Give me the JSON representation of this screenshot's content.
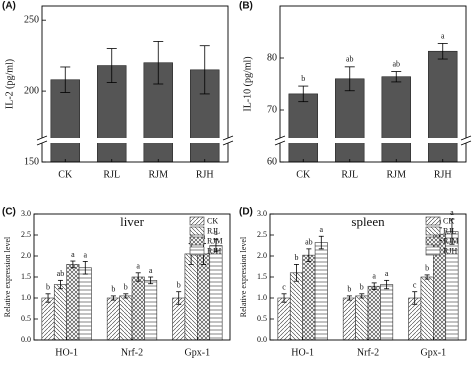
{
  "chart_data": [
    {
      "type": "bar",
      "panel_label": "(A)",
      "ylabel": "IL-2 (pg/ml)",
      "categories": [
        "CK",
        "RJL",
        "RJM",
        "RJH"
      ],
      "values": [
        208,
        218,
        220,
        215
      ],
      "errors": [
        9,
        12,
        15,
        17
      ],
      "color": "#555555",
      "ylim": [
        150,
        260
      ],
      "yticks": [
        150,
        200,
        250
      ],
      "axis_break": true
    },
    {
      "type": "bar",
      "panel_label": "(B)",
      "ylabel": "IL-10 (pg/ml)",
      "categories": [
        "CK",
        "RJL",
        "RJM",
        "RJH"
      ],
      "values": [
        73.1,
        76,
        76.4,
        81.3
      ],
      "errors": [
        1.5,
        2.3,
        1,
        1.5
      ],
      "letters": [
        "b",
        "ab",
        "ab",
        "a"
      ],
      "color": "#555555",
      "ylim": [
        60,
        90
      ],
      "yticks": [
        60,
        70,
        80
      ],
      "axis_break": true
    },
    {
      "type": "grouped_bar",
      "panel_label": "(C)",
      "title": "liver",
      "ylabel": "Relative expression level",
      "categories": [
        "HO-1",
        "Nrf-2",
        "Gpx-1"
      ],
      "series": [
        {
          "name": "CK",
          "pattern": "diagonal",
          "values": [
            1.0,
            1.0,
            1.0
          ],
          "errors": [
            0.1,
            0.05,
            0.15
          ],
          "letters": [
            "b",
            "b",
            "b"
          ]
        },
        {
          "name": "RJL",
          "pattern": "back-diagonal",
          "values": [
            1.32,
            1.05,
            2.05
          ],
          "errors": [
            0.1,
            0.05,
            0.25
          ],
          "letters": [
            "ab",
            "b",
            "a"
          ]
        },
        {
          "name": "RJM",
          "pattern": "cross",
          "values": [
            1.8,
            1.5,
            2.05
          ],
          "errors": [
            0.08,
            0.1,
            0.25
          ],
          "letters": [
            "a",
            "a",
            "a"
          ]
        },
        {
          "name": "RJH",
          "pattern": "grid",
          "values": [
            1.72,
            1.42,
            2.25
          ],
          "errors": [
            0.15,
            0.08,
            0.15
          ],
          "letters": [
            "a",
            "a",
            "a"
          ]
        }
      ],
      "ylim": [
        0,
        3.0
      ],
      "yticks": [
        {
          "value": 0,
          "label": "0.0"
        },
        0.5,
        {
          "value": 1,
          "label": "1.0"
        },
        1.5,
        {
          "value": 2,
          "label": "2.0"
        },
        2.5,
        {
          "value": 3,
          "label": "3.0"
        }
      ],
      "legend": "upper right"
    },
    {
      "type": "grouped_bar",
      "panel_label": "(D)",
      "title": "spleen",
      "ylabel": "Relative expression level",
      "categories": [
        "HO-1",
        "Nrf-2",
        "Gpx-1"
      ],
      "series": [
        {
          "name": "CK",
          "pattern": "diagonal",
          "values": [
            1.0,
            1.0,
            1.0
          ],
          "errors": [
            0.1,
            0.05,
            0.15
          ],
          "letters": [
            "c",
            "b",
            "c"
          ]
        },
        {
          "name": "RJL",
          "pattern": "back-diagonal",
          "values": [
            1.6,
            1.05,
            1.5
          ],
          "errors": [
            0.2,
            0.05,
            0.05
          ],
          "letters": [
            "b",
            "b",
            "b"
          ]
        },
        {
          "name": "RJM",
          "pattern": "cross",
          "values": [
            2.02,
            1.28,
            2.52
          ],
          "errors": [
            0.15,
            0.08,
            0.15
          ],
          "letters": [
            "ab",
            "a",
            "a"
          ]
        },
        {
          "name": "RJH",
          "pattern": "grid",
          "values": [
            2.32,
            1.32,
            2.58
          ],
          "errors": [
            0.15,
            0.1,
            0.3
          ],
          "letters": [
            "a",
            "a",
            "a"
          ]
        }
      ],
      "ylim": [
        0,
        3.0
      ],
      "yticks": [
        {
          "value": 0,
          "label": "0.0"
        },
        0.5,
        {
          "value": 1,
          "label": "1.0"
        },
        1.5,
        {
          "value": 2,
          "label": "2.0"
        },
        2.5,
        {
          "value": 3,
          "label": "3.0"
        }
      ],
      "legend": "upper right"
    }
  ]
}
